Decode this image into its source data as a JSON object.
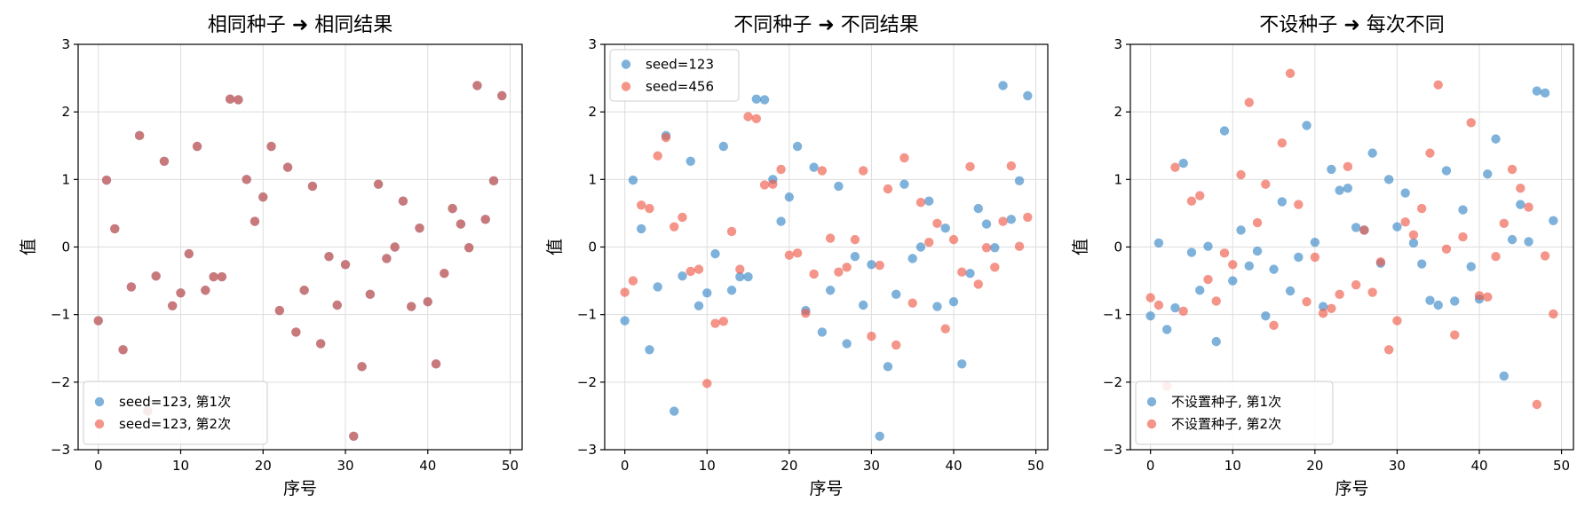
{
  "chart_data": [
    {
      "type": "scatter",
      "title": "相同种子 ➜ 相同结果",
      "xlabel": "序号",
      "ylabel": "值",
      "xlim": [
        -2.45,
        51.45
      ],
      "ylim": [
        -3,
        3
      ],
      "xticks": [
        0,
        10,
        20,
        30,
        40,
        50
      ],
      "yticks": [
        -3,
        -2,
        -1,
        0,
        1,
        2,
        3
      ],
      "ytick_labels": [
        "−3",
        "−2",
        "−1",
        "0",
        "1",
        "2",
        "3"
      ],
      "grid": true,
      "legend_location": "lower left",
      "series": [
        {
          "name": "seed=123, 第1次",
          "color": "#3a88c8",
          "alpha": 0.65,
          "y": [
            -1.09,
            0.99,
            0.27,
            -1.52,
            -0.59,
            1.65,
            -2.43,
            -0.43,
            1.27,
            -0.87,
            -0.68,
            -0.1,
            1.49,
            -0.64,
            -0.44,
            -0.44,
            2.19,
            2.18,
            1.0,
            0.38,
            0.74,
            1.49,
            -0.94,
            1.18,
            -1.26,
            -0.64,
            0.9,
            -1.43,
            -0.14,
            -0.86,
            -0.26,
            -2.8,
            -1.77,
            -0.7,
            0.93,
            -0.17,
            0.0,
            0.68,
            -0.88,
            0.28,
            -0.81,
            -1.73,
            -0.39,
            0.57,
            0.34,
            -0.01,
            2.39,
            0.41,
            0.98,
            2.24
          ]
        },
        {
          "name": "seed=123, 第2次",
          "color": "#f05a4a",
          "alpha": 0.65,
          "y": [
            -1.09,
            0.99,
            0.27,
            -1.52,
            -0.59,
            1.65,
            -2.43,
            -0.43,
            1.27,
            -0.87,
            -0.68,
            -0.1,
            1.49,
            -0.64,
            -0.44,
            -0.44,
            2.19,
            2.18,
            1.0,
            0.38,
            0.74,
            1.49,
            -0.94,
            1.18,
            -1.26,
            -0.64,
            0.9,
            -1.43,
            -0.14,
            -0.86,
            -0.26,
            -2.8,
            -1.77,
            -0.7,
            0.93,
            -0.17,
            0.0,
            0.68,
            -0.88,
            0.28,
            -0.81,
            -1.73,
            -0.39,
            0.57,
            0.34,
            -0.01,
            2.39,
            0.41,
            0.98,
            2.24
          ]
        }
      ]
    },
    {
      "type": "scatter",
      "title": "不同种子 ➜ 不同结果",
      "xlabel": "序号",
      "ylabel": "值",
      "xlim": [
        -2.45,
        51.45
      ],
      "ylim": [
        -3,
        3
      ],
      "xticks": [
        0,
        10,
        20,
        30,
        40,
        50
      ],
      "yticks": [
        -3,
        -2,
        -1,
        0,
        1,
        2,
        3
      ],
      "ytick_labels": [
        "−3",
        "−2",
        "−1",
        "0",
        "1",
        "2",
        "3"
      ],
      "grid": true,
      "legend_location": "upper left",
      "series": [
        {
          "name": "seed=123",
          "color": "#3a88c8",
          "alpha": 0.65,
          "y": [
            -1.09,
            0.99,
            0.27,
            -1.52,
            -0.59,
            1.65,
            -2.43,
            -0.43,
            1.27,
            -0.87,
            -0.68,
            -0.1,
            1.49,
            -0.64,
            -0.44,
            -0.44,
            2.19,
            2.18,
            1.0,
            0.38,
            0.74,
            1.49,
            -0.94,
            1.18,
            -1.26,
            -0.64,
            0.9,
            -1.43,
            -0.14,
            -0.86,
            -0.26,
            -2.8,
            -1.77,
            -0.7,
            0.93,
            -0.17,
            0.0,
            0.68,
            -0.88,
            0.28,
            -0.81,
            -1.73,
            -0.39,
            0.57,
            0.34,
            -0.01,
            2.39,
            0.41,
            0.98,
            2.24
          ]
        },
        {
          "name": "seed=456",
          "color": "#f05a4a",
          "alpha": 0.65,
          "y": [
            -0.67,
            -0.5,
            0.62,
            0.57,
            1.35,
            1.62,
            0.3,
            0.44,
            -0.36,
            -0.33,
            -2.02,
            -1.13,
            -1.1,
            0.23,
            -0.33,
            1.93,
            1.9,
            0.92,
            0.93,
            1.15,
            -0.12,
            -0.09,
            -0.98,
            -0.4,
            1.13,
            0.13,
            -0.37,
            -0.3,
            0.11,
            1.13,
            -1.32,
            -0.27,
            0.86,
            -1.45,
            1.32,
            -0.83,
            0.66,
            0.07,
            0.35,
            -1.21,
            0.11,
            -0.37,
            1.19,
            -0.55,
            -0.01,
            -0.3,
            0.38,
            1.2,
            0.01,
            0.44
          ]
        }
      ]
    },
    {
      "type": "scatter",
      "title": "不设种子 ➜ 每次不同",
      "xlabel": "序号",
      "ylabel": "值",
      "xlim": [
        -2.45,
        51.45
      ],
      "ylim": [
        -3,
        3
      ],
      "xticks": [
        0,
        10,
        20,
        30,
        40,
        50
      ],
      "yticks": [
        -3,
        -2,
        -1,
        0,
        1,
        2,
        3
      ],
      "ytick_labels": [
        "−3",
        "−2",
        "−1",
        "0",
        "1",
        "2",
        "3"
      ],
      "grid": true,
      "legend_location": "lower left",
      "series": [
        {
          "name": "不设置种子, 第1次",
          "color": "#3a88c8",
          "alpha": 0.65,
          "y": [
            -1.02,
            0.06,
            -1.22,
            -0.9,
            1.24,
            -0.08,
            -0.64,
            0.01,
            -1.4,
            1.72,
            -0.5,
            0.25,
            -0.28,
            -0.06,
            -1.02,
            -0.33,
            0.67,
            -0.65,
            -0.15,
            1.8,
            0.07,
            -0.88,
            1.15,
            0.84,
            0.87,
            0.29,
            0.25,
            1.39,
            -0.24,
            1.0,
            0.3,
            0.8,
            0.06,
            -0.25,
            -0.79,
            -0.86,
            1.13,
            -0.8,
            0.55,
            -0.29,
            -0.77,
            1.08,
            1.6,
            -1.91,
            0.11,
            0.63,
            0.08,
            2.31,
            2.28,
            0.39
          ]
        },
        {
          "name": "不设置种子, 第2次",
          "color": "#f05a4a",
          "alpha": 0.65,
          "y": [
            -0.75,
            -0.86,
            -2.06,
            1.18,
            -0.95,
            0.68,
            0.76,
            -0.48,
            -0.8,
            -0.09,
            -0.26,
            1.07,
            2.14,
            0.36,
            0.93,
            -1.16,
            1.54,
            2.57,
            0.63,
            -0.81,
            -0.15,
            -0.98,
            -0.91,
            -0.7,
            1.19,
            -0.56,
            0.25,
            -0.67,
            -0.22,
            -1.52,
            -1.09,
            0.37,
            0.18,
            0.57,
            1.39,
            2.4,
            -0.03,
            -1.3,
            0.15,
            1.84,
            -0.72,
            -0.74,
            -0.14,
            0.35,
            1.15,
            0.87,
            0.59,
            -2.33,
            -0.13,
            -0.99
          ]
        }
      ]
    }
  ]
}
